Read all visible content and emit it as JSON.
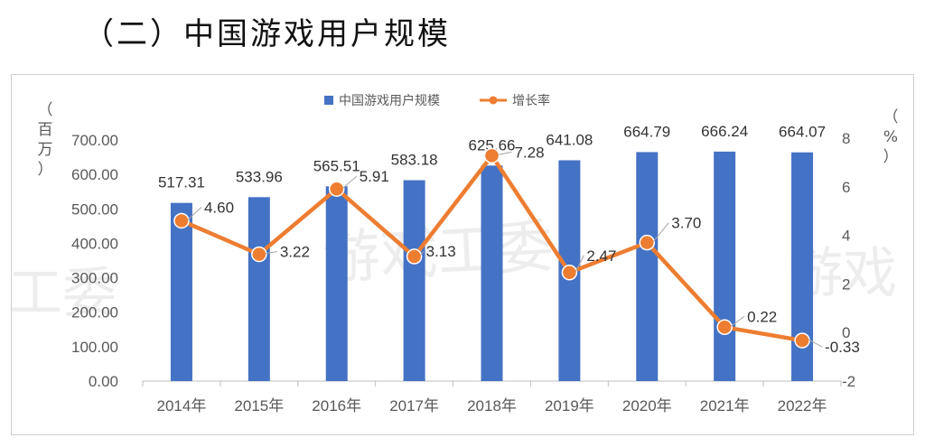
{
  "heading": "（二）中国游戏用户规模",
  "watermarks": [
    "游戏工委",
    "工委",
    "游戏"
  ],
  "chart_data": {
    "type": "bar",
    "title": "",
    "categories": [
      "2014年",
      "2015年",
      "2016年",
      "2017年",
      "2018年",
      "2019年",
      "2020年",
      "2021年",
      "2022年"
    ],
    "series": [
      {
        "name": "中国游戏用户规模",
        "type": "bar",
        "axis": "left",
        "color": "#4472C4",
        "values": [
          517.31,
          533.96,
          565.51,
          583.18,
          625.66,
          641.08,
          664.79,
          666.24,
          664.07
        ],
        "labels": [
          "517.31",
          "533.96",
          "565.51",
          "583.18",
          "625.66",
          "641.08",
          "664.79",
          "666.24",
          "664.07"
        ]
      },
      {
        "name": "增长率",
        "type": "line",
        "axis": "right",
        "color": "#ED7D31",
        "values": [
          4.6,
          3.22,
          5.91,
          3.13,
          7.28,
          2.47,
          3.7,
          0.22,
          -0.33
        ],
        "labels": [
          "4.60",
          "3.22",
          "5.91",
          "3.13",
          "7.28",
          "2.47",
          "3.70",
          "0.22",
          "-0.33"
        ]
      }
    ],
    "y_left": {
      "unit": [
        "（",
        "百",
        "万",
        "）"
      ],
      "ylim": [
        0,
        700
      ],
      "ticks": [
        "0.00",
        "100.00",
        "200.00",
        "300.00",
        "400.00",
        "500.00",
        "600.00",
        "700.00"
      ]
    },
    "y_right": {
      "unit": [
        "（",
        "%",
        "）"
      ],
      "ylim": [
        -2,
        8
      ],
      "ticks": [
        "-2",
        "0",
        "2",
        "4",
        "6",
        "8"
      ]
    },
    "legend_position": "top-center",
    "grid": false
  }
}
